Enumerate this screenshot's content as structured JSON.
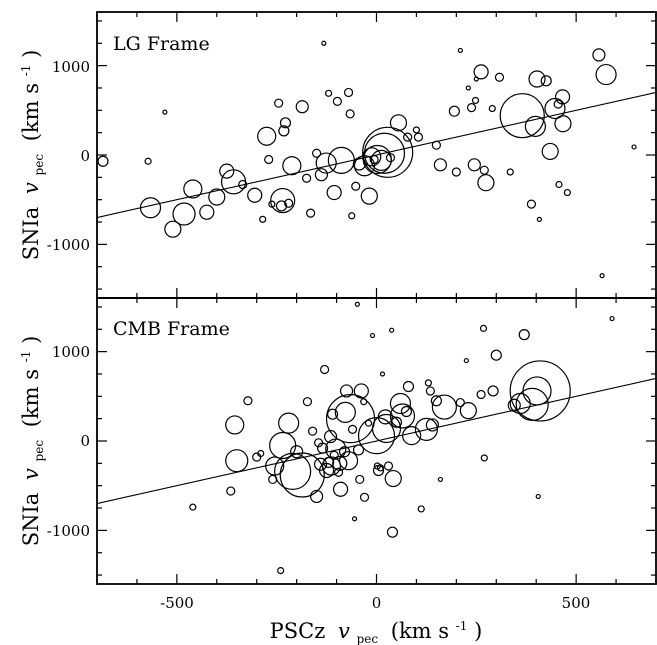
{
  "chart_data": [
    {
      "type": "scatter",
      "title": "LG Frame",
      "xlabel": "PSCz v_pec (km s^-1)",
      "ylabel": "SNIa v_pec (km s^-1)",
      "xlim": [
        -700,
        700
      ],
      "ylim": [
        -1600,
        1600
      ],
      "x_ticks": [
        -500,
        0,
        500
      ],
      "y_ticks": [
        -1000,
        0,
        1000
      ],
      "fit_line": {
        "x": [
          -700,
          700
        ],
        "y": [
          -700,
          700
        ]
      },
      "points": [
        {
          "x": -685,
          "y": -70,
          "r": 5
        },
        {
          "x": -572,
          "y": -70,
          "r": 3
        },
        {
          "x": -530,
          "y": 480,
          "r": 2
        },
        {
          "x": -566,
          "y": -590,
          "r": 10
        },
        {
          "x": -510,
          "y": -830,
          "r": 8
        },
        {
          "x": -482,
          "y": -660,
          "r": 11
        },
        {
          "x": -460,
          "y": -380,
          "r": 9
        },
        {
          "x": -425,
          "y": -640,
          "r": 7
        },
        {
          "x": -400,
          "y": -470,
          "r": 8
        },
        {
          "x": -375,
          "y": -180,
          "r": 7
        },
        {
          "x": -358,
          "y": -300,
          "r": 12
        },
        {
          "x": -335,
          "y": -330,
          "r": 4
        },
        {
          "x": -305,
          "y": -450,
          "r": 7
        },
        {
          "x": -285,
          "y": -720,
          "r": 3
        },
        {
          "x": -275,
          "y": 210,
          "r": 9
        },
        {
          "x": -270,
          "y": -50,
          "r": 4
        },
        {
          "x": -262,
          "y": -550,
          "r": 3
        },
        {
          "x": -245,
          "y": 580,
          "r": 4
        },
        {
          "x": -238,
          "y": -570,
          "r": 5
        },
        {
          "x": -235,
          "y": -510,
          "r": 12
        },
        {
          "x": -232,
          "y": 270,
          "r": 5
        },
        {
          "x": -228,
          "y": 360,
          "r": 5
        },
        {
          "x": -220,
          "y": -540,
          "r": 4
        },
        {
          "x": -212,
          "y": -120,
          "r": 9
        },
        {
          "x": -186,
          "y": 540,
          "r": 6
        },
        {
          "x": -175,
          "y": -260,
          "r": 4
        },
        {
          "x": -165,
          "y": -650,
          "r": 4
        },
        {
          "x": -150,
          "y": 20,
          "r": 4
        },
        {
          "x": -138,
          "y": -220,
          "r": 6
        },
        {
          "x": -132,
          "y": 1250,
          "r": 2
        },
        {
          "x": -126,
          "y": -90,
          "r": 10
        },
        {
          "x": -120,
          "y": 690,
          "r": 3
        },
        {
          "x": -106,
          "y": -420,
          "r": 7
        },
        {
          "x": -98,
          "y": 600,
          "r": 4
        },
        {
          "x": -88,
          "y": -60,
          "r": 13
        },
        {
          "x": -70,
          "y": 700,
          "r": 4
        },
        {
          "x": -66,
          "y": 460,
          "r": 4
        },
        {
          "x": -62,
          "y": -680,
          "r": 3
        },
        {
          "x": -52,
          "y": -350,
          "r": 4
        },
        {
          "x": -43,
          "y": -100,
          "r": 6
        },
        {
          "x": -30,
          "y": -120,
          "r": 10
        },
        {
          "x": -18,
          "y": -460,
          "r": 8
        },
        {
          "x": -12,
          "y": -20,
          "r": 9
        },
        {
          "x": -6,
          "y": -50,
          "r": 4
        },
        {
          "x": 2,
          "y": -50,
          "r": 14
        },
        {
          "x": 12,
          "y": -60,
          "r": 10
        },
        {
          "x": 20,
          "y": 20,
          "r": 20
        },
        {
          "x": 28,
          "y": 30,
          "r": 25
        },
        {
          "x": 35,
          "y": -30,
          "r": 4
        },
        {
          "x": 55,
          "y": 360,
          "r": 8
        },
        {
          "x": 78,
          "y": 200,
          "r": 4
        },
        {
          "x": 100,
          "y": 280,
          "r": 3
        },
        {
          "x": 105,
          "y": 200,
          "r": 4
        },
        {
          "x": 150,
          "y": 110,
          "r": 4
        },
        {
          "x": 160,
          "y": -110,
          "r": 6
        },
        {
          "x": 195,
          "y": 490,
          "r": 5
        },
        {
          "x": 200,
          "y": -190,
          "r": 4
        },
        {
          "x": 210,
          "y": 1170,
          "r": 2
        },
        {
          "x": 230,
          "y": 750,
          "r": 2
        },
        {
          "x": 238,
          "y": 530,
          "r": 4
        },
        {
          "x": 245,
          "y": -110,
          "r": 6
        },
        {
          "x": 248,
          "y": 610,
          "r": 3
        },
        {
          "x": 250,
          "y": 850,
          "r": 2
        },
        {
          "x": 262,
          "y": 930,
          "r": 7
        },
        {
          "x": 270,
          "y": -170,
          "r": 4
        },
        {
          "x": 274,
          "y": -310,
          "r": 8
        },
        {
          "x": 290,
          "y": 520,
          "r": 3
        },
        {
          "x": 308,
          "y": 870,
          "r": 4
        },
        {
          "x": 335,
          "y": -190,
          "r": 3
        },
        {
          "x": 365,
          "y": 440,
          "r": 22
        },
        {
          "x": 388,
          "y": -550,
          "r": 4
        },
        {
          "x": 398,
          "y": 320,
          "r": 10
        },
        {
          "x": 402,
          "y": 850,
          "r": 8
        },
        {
          "x": 408,
          "y": -720,
          "r": 2
        },
        {
          "x": 425,
          "y": 830,
          "r": 5
        },
        {
          "x": 435,
          "y": 40,
          "r": 8
        },
        {
          "x": 447,
          "y": 520,
          "r": 10
        },
        {
          "x": 455,
          "y": 570,
          "r": 4
        },
        {
          "x": 457,
          "y": -330,
          "r": 3
        },
        {
          "x": 466,
          "y": 650,
          "r": 7
        },
        {
          "x": 467,
          "y": 350,
          "r": 8
        },
        {
          "x": 478,
          "y": -420,
          "r": 3
        },
        {
          "x": 557,
          "y": 1120,
          "r": 6
        },
        {
          "x": 565,
          "y": -1350,
          "r": 2
        },
        {
          "x": 575,
          "y": 900,
          "r": 10
        },
        {
          "x": 645,
          "y": 90,
          "r": 2
        }
      ]
    },
    {
      "type": "scatter",
      "title": "CMB Frame",
      "xlabel": "PSCz v_pec (km s^-1)",
      "ylabel": "SNIa v_pec (km s^-1)",
      "xlim": [
        -700,
        700
      ],
      "ylim": [
        -1600,
        1600
      ],
      "x_ticks": [
        -500,
        0,
        500
      ],
      "y_ticks": [
        -1000,
        0,
        1000
      ],
      "fit_line": {
        "x": [
          -700,
          700
        ],
        "y": [
          -700,
          700
        ]
      },
      "points": [
        {
          "x": -460,
          "y": -740,
          "r": 3
        },
        {
          "x": -365,
          "y": -560,
          "r": 4
        },
        {
          "x": -355,
          "y": 180,
          "r": 9
        },
        {
          "x": -350,
          "y": -220,
          "r": 11
        },
        {
          "x": -322,
          "y": 450,
          "r": 4
        },
        {
          "x": -300,
          "y": -180,
          "r": 4
        },
        {
          "x": -290,
          "y": -140,
          "r": 3
        },
        {
          "x": -260,
          "y": -430,
          "r": 4
        },
        {
          "x": -255,
          "y": -280,
          "r": 9
        },
        {
          "x": -240,
          "y": -1450,
          "r": 3
        },
        {
          "x": -235,
          "y": -50,
          "r": 13
        },
        {
          "x": -220,
          "y": 200,
          "r": 10
        },
        {
          "x": -210,
          "y": -340,
          "r": 18
        },
        {
          "x": -200,
          "y": -120,
          "r": 6
        },
        {
          "x": -186,
          "y": -380,
          "r": 22
        },
        {
          "x": -173,
          "y": 440,
          "r": 4
        },
        {
          "x": -160,
          "y": 110,
          "r": 4
        },
        {
          "x": -150,
          "y": -620,
          "r": 6
        },
        {
          "x": -145,
          "y": -20,
          "r": 4
        },
        {
          "x": -140,
          "y": -260,
          "r": 6
        },
        {
          "x": -135,
          "y": -80,
          "r": 5
        },
        {
          "x": -130,
          "y": 800,
          "r": 4
        },
        {
          "x": -125,
          "y": -330,
          "r": 7
        },
        {
          "x": -120,
          "y": -240,
          "r": 5
        },
        {
          "x": -115,
          "y": 50,
          "r": 6
        },
        {
          "x": -113,
          "y": -280,
          "r": 9
        },
        {
          "x": -110,
          "y": 300,
          "r": 5
        },
        {
          "x": -106,
          "y": -160,
          "r": 4
        },
        {
          "x": -102,
          "y": -90,
          "r": 10
        },
        {
          "x": -95,
          "y": -350,
          "r": 4
        },
        {
          "x": -92,
          "y": -250,
          "r": 7
        },
        {
          "x": -90,
          "y": -540,
          "r": 7
        },
        {
          "x": -80,
          "y": -120,
          "r": 5
        },
        {
          "x": -78,
          "y": 320,
          "r": 10
        },
        {
          "x": -75,
          "y": 560,
          "r": 6
        },
        {
          "x": -70,
          "y": -220,
          "r": 9
        },
        {
          "x": -65,
          "y": 250,
          "r": 24
        },
        {
          "x": -60,
          "y": 130,
          "r": 4
        },
        {
          "x": -55,
          "y": -870,
          "r": 2
        },
        {
          "x": -48,
          "y": 1530,
          "r": 2
        },
        {
          "x": -45,
          "y": -100,
          "r": 5
        },
        {
          "x": -42,
          "y": -430,
          "r": 4
        },
        {
          "x": -38,
          "y": 560,
          "r": 7
        },
        {
          "x": -32,
          "y": 440,
          "r": 3
        },
        {
          "x": -30,
          "y": -630,
          "r": 4
        },
        {
          "x": -20,
          "y": 200,
          "r": 3
        },
        {
          "x": -10,
          "y": 1180,
          "r": 2
        },
        {
          "x": 0,
          "y": 60,
          "r": 18
        },
        {
          "x": 2,
          "y": -280,
          "r": 3
        },
        {
          "x": 5,
          "y": -330,
          "r": 5
        },
        {
          "x": 10,
          "y": -300,
          "r": 3
        },
        {
          "x": 15,
          "y": 750,
          "r": 2
        },
        {
          "x": 22,
          "y": 270,
          "r": 7
        },
        {
          "x": 25,
          "y": 140,
          "r": 14
        },
        {
          "x": 30,
          "y": -280,
          "r": 4
        },
        {
          "x": 38,
          "y": 1240,
          "r": 2
        },
        {
          "x": 40,
          "y": -1020,
          "r": 5
        },
        {
          "x": 42,
          "y": -420,
          "r": 8
        },
        {
          "x": 50,
          "y": 210,
          "r": 5
        },
        {
          "x": 60,
          "y": 420,
          "r": 10
        },
        {
          "x": 65,
          "y": 280,
          "r": 12
        },
        {
          "x": 75,
          "y": 330,
          "r": 5
        },
        {
          "x": 80,
          "y": 610,
          "r": 5
        },
        {
          "x": 88,
          "y": 60,
          "r": 9
        },
        {
          "x": 112,
          "y": -760,
          "r": 3
        },
        {
          "x": 125,
          "y": 130,
          "r": 11
        },
        {
          "x": 130,
          "y": 650,
          "r": 3
        },
        {
          "x": 135,
          "y": 560,
          "r": 4
        },
        {
          "x": 140,
          "y": 180,
          "r": 6
        },
        {
          "x": 150,
          "y": 450,
          "r": 5
        },
        {
          "x": 160,
          "y": -430,
          "r": 2
        },
        {
          "x": 170,
          "y": 380,
          "r": 12
        },
        {
          "x": 210,
          "y": 430,
          "r": 4
        },
        {
          "x": 225,
          "y": 900,
          "r": 2
        },
        {
          "x": 230,
          "y": 340,
          "r": 8
        },
        {
          "x": 262,
          "y": 520,
          "r": 4
        },
        {
          "x": 268,
          "y": 1260,
          "r": 3
        },
        {
          "x": 270,
          "y": -190,
          "r": 3
        },
        {
          "x": 292,
          "y": 560,
          "r": 5
        },
        {
          "x": 300,
          "y": 960,
          "r": 5
        },
        {
          "x": 345,
          "y": 400,
          "r": 6
        },
        {
          "x": 360,
          "y": 420,
          "r": 10
        },
        {
          "x": 370,
          "y": 1190,
          "r": 5
        },
        {
          "x": 390,
          "y": 410,
          "r": 16
        },
        {
          "x": 402,
          "y": 560,
          "r": 14
        },
        {
          "x": 405,
          "y": -620,
          "r": 2
        },
        {
          "x": 410,
          "y": 560,
          "r": 30
        },
        {
          "x": 590,
          "y": 1370,
          "r": 2
        }
      ]
    }
  ],
  "xlabel_main": "PSCz",
  "xlabel_v": "v",
  "xlabel_sub": "pec",
  "xlabel_units": "(km s",
  "xlabel_exp": "-1",
  "xlabel_close": ")",
  "ylabel_main": "SNIa",
  "ylabel_v": "v",
  "ylabel_sub": "pec",
  "ylabel_units": "(km s",
  "ylabel_exp": "-1",
  "ylabel_close": ")",
  "panel_labels": [
    "LG Frame",
    "CMB Frame"
  ],
  "x_tick_labels": [
    "-500",
    "0",
    "500"
  ],
  "y_tick_labels": [
    "1000",
    "0",
    "-1000"
  ]
}
